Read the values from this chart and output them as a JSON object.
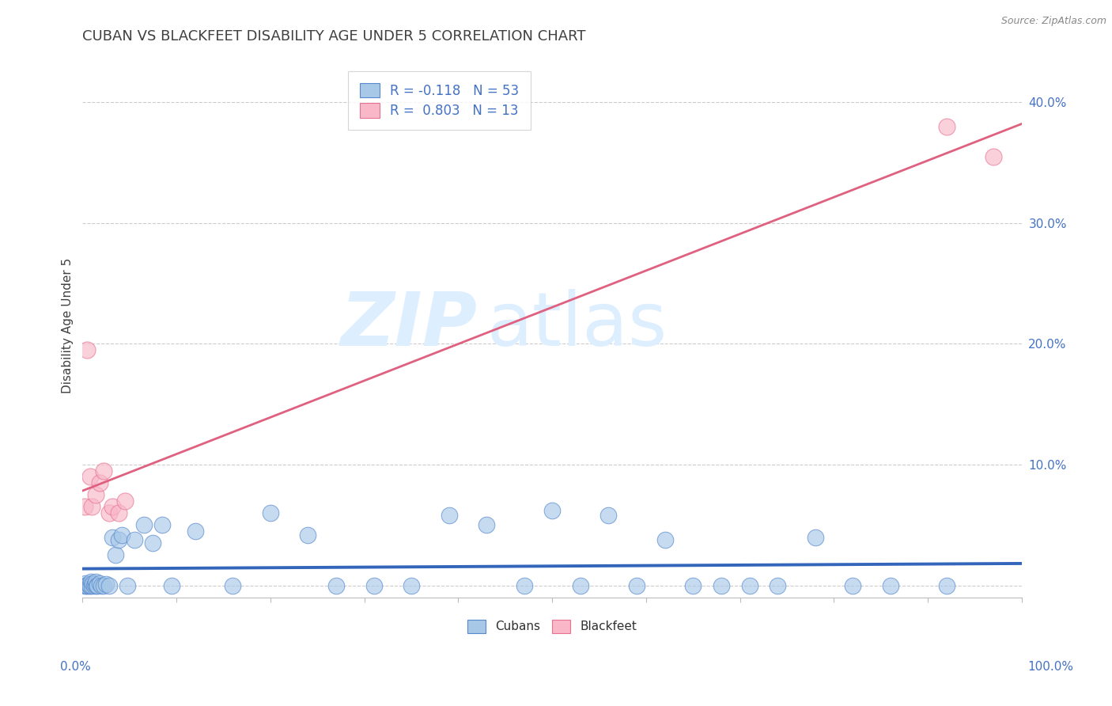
{
  "title": "CUBAN VS BLACKFEET DISABILITY AGE UNDER 5 CORRELATION CHART",
  "source": "Source: ZipAtlas.com",
  "ylabel": "Disability Age Under 5",
  "y_ticks": [
    0.0,
    0.1,
    0.2,
    0.3,
    0.4
  ],
  "y_tick_labels": [
    "",
    "10.0%",
    "20.0%",
    "30.0%",
    "40.0%"
  ],
  "xlim": [
    0.0,
    1.0
  ],
  "ylim": [
    -0.01,
    0.44
  ],
  "legend_label_1": "R = -0.118   N = 53",
  "legend_label_2": "R =  0.803   N = 13",
  "cubans_x": [
    0.002,
    0.003,
    0.004,
    0.005,
    0.006,
    0.007,
    0.008,
    0.009,
    0.01,
    0.011,
    0.012,
    0.013,
    0.014,
    0.015,
    0.016,
    0.018,
    0.02,
    0.022,
    0.025,
    0.028,
    0.032,
    0.035,
    0.038,
    0.042,
    0.048,
    0.055,
    0.065,
    0.075,
    0.085,
    0.095,
    0.12,
    0.16,
    0.2,
    0.24,
    0.27,
    0.31,
    0.35,
    0.39,
    0.43,
    0.47,
    0.5,
    0.53,
    0.56,
    0.59,
    0.62,
    0.65,
    0.68,
    0.71,
    0.74,
    0.78,
    0.82,
    0.86,
    0.92
  ],
  "cubans_y": [
    0.0,
    0.002,
    0.0,
    0.0,
    0.001,
    0.0,
    0.0,
    0.003,
    0.0,
    0.002,
    0.0,
    0.001,
    0.003,
    0.0,
    0.0,
    0.002,
    0.0,
    0.0,
    0.001,
    0.0,
    0.04,
    0.025,
    0.038,
    0.042,
    0.0,
    0.038,
    0.05,
    0.035,
    0.05,
    0.0,
    0.045,
    0.0,
    0.06,
    0.042,
    0.0,
    0.0,
    0.0,
    0.058,
    0.05,
    0.0,
    0.062,
    0.0,
    0.058,
    0.0,
    0.038,
    0.0,
    0.0,
    0.0,
    0.0,
    0.04,
    0.0,
    0.0,
    0.0
  ],
  "blackfeet_x": [
    0.002,
    0.005,
    0.008,
    0.01,
    0.014,
    0.018,
    0.022,
    0.028,
    0.032,
    0.038,
    0.045,
    0.92,
    0.97
  ],
  "blackfeet_y": [
    0.065,
    0.195,
    0.09,
    0.065,
    0.075,
    0.085,
    0.095,
    0.06,
    0.065,
    0.06,
    0.07,
    0.38,
    0.355
  ],
  "cuban_color": "#a8c8e8",
  "cuban_edge_color": "#5588cc",
  "cuban_line_color": "#3366bb",
  "blackfeet_color": "#f8b8c8",
  "blackfeet_edge_color": "#e87090",
  "blackfeet_line_color": "#e06080",
  "title_color": "#404040",
  "axis_label_color": "#4472c4",
  "watermark_color": "#ddeeff",
  "grid_color": "#cccccc",
  "background_color": "#ffffff",
  "title_fontsize": 13,
  "axis_fontsize": 11,
  "source_fontsize": 9
}
